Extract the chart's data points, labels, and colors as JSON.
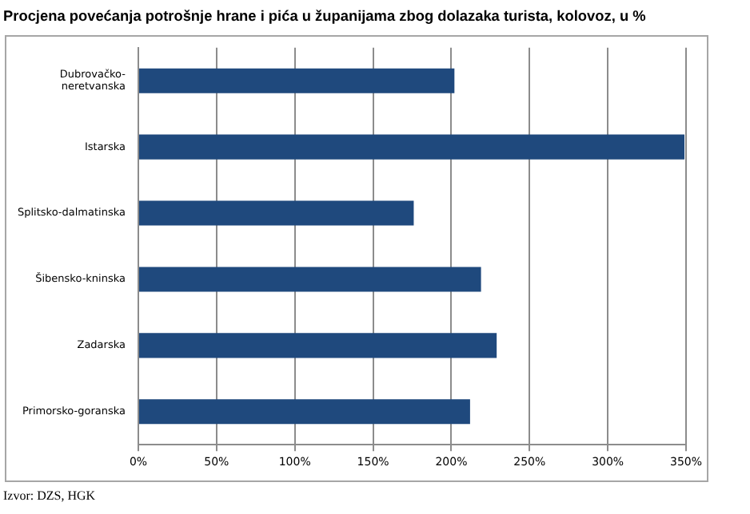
{
  "chart_data": {
    "type": "bar",
    "orientation": "horizontal",
    "title": "Procjena povećanja potrošnje hrane i pića u županijama zbog dolazaka turista, kolovoz, u %",
    "categories": [
      "Dubrovačko-neretvanska",
      "Istarska",
      "Splitsko-dalmatinska",
      "Šibensko-kninska",
      "Zadarska",
      "Primorsko-goranska"
    ],
    "values": [
      202,
      349,
      176,
      219,
      229,
      212
    ],
    "color": "#1f497d",
    "xlim": [
      0,
      350
    ],
    "xticks": [
      {
        "value": 0,
        "label": "0%"
      },
      {
        "value": 50,
        "label": "50%"
      },
      {
        "value": 100,
        "label": "100%"
      },
      {
        "value": 150,
        "label": "150%"
      },
      {
        "value": 200,
        "label": "200%"
      },
      {
        "value": 250,
        "label": "250%"
      },
      {
        "value": 300,
        "label": "300%"
      },
      {
        "value": 350,
        "label": "350%"
      }
    ],
    "grid": "x",
    "annotations": [
      "Izvor: DZS, HGK"
    ]
  }
}
